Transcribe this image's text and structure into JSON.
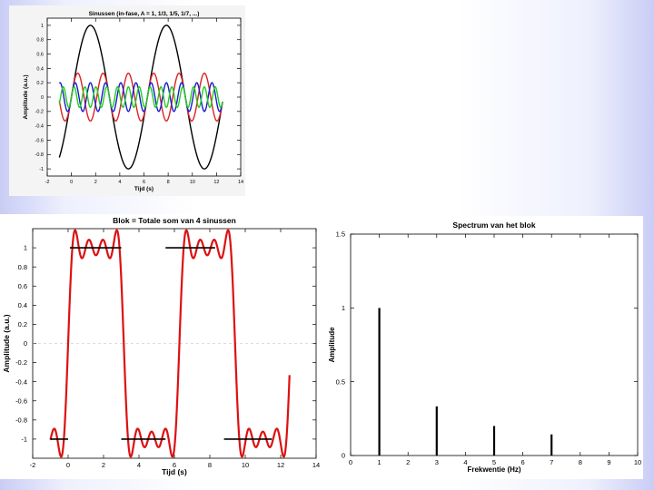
{
  "chart_data": [
    {
      "type": "line",
      "title": "Sinussen (in-fase, A = 1, 1/3, 1/5, 1/7, ...)",
      "xlabel": "Tijd (s)",
      "ylabel": "Amplitude (a.u.)",
      "xlim": [
        -2,
        14
      ],
      "ylim": [
        -1.1,
        1.1
      ],
      "xticks": [
        "-2",
        "0",
        "2",
        "4",
        "6",
        "8",
        "10",
        "12",
        "14"
      ],
      "yticks": [
        "-1",
        "-0.8",
        "-0.6",
        "-0.4",
        "-0.2",
        "0",
        "0.2",
        "0.4",
        "0.6",
        "0.8",
        "1"
      ],
      "x_range": [
        -1,
        12.5
      ],
      "period": 6.283,
      "series": [
        {
          "harmonic": 1,
          "amplitude": 1.0,
          "color": "#000000"
        },
        {
          "harmonic": 3,
          "amplitude": 0.333,
          "color": "#dd2222"
        },
        {
          "harmonic": 5,
          "amplitude": 0.2,
          "color": "#1a1acc"
        },
        {
          "harmonic": 7,
          "amplitude": 0.143,
          "color": "#22cc22"
        }
      ],
      "grid": false
    },
    {
      "type": "line",
      "title": "Blok = Totale som van  4 sinussen",
      "xlabel": "Tijd (s)",
      "ylabel": "Amplitude (a.u.)",
      "xlim": [
        -2,
        14
      ],
      "ylim": [
        -1.2,
        1.2
      ],
      "xticks": [
        "-2",
        "0",
        "2",
        "4",
        "6",
        "8",
        "10",
        "12",
        "14"
      ],
      "yticks": [
        "-1",
        "-0.8",
        "-0.6",
        "-0.4",
        "-0.2",
        "0",
        "0.2",
        "0.4",
        "0.6",
        "0.8",
        "1"
      ],
      "x_range": [
        -1,
        12.5
      ],
      "harmonics": [
        1,
        3,
        5,
        7
      ],
      "amplitudes": [
        1,
        0.333,
        0.2,
        0.143
      ],
      "scale": 1.273,
      "line_color": "#dd1111",
      "ideal_segments": [
        {
          "x0": 0.1,
          "x1": 3.0,
          "y": 1
        },
        {
          "x0": 5.5,
          "x1": 8.3,
          "y": 1
        },
        {
          "x0": -1.0,
          "x1": 0.0,
          "y": -1
        },
        {
          "x0": 3.0,
          "x1": 5.5,
          "y": -1
        },
        {
          "x0": 8.8,
          "x1": 11.5,
          "y": -1
        }
      ],
      "grid": false
    },
    {
      "type": "bar",
      "title": "Spectrum van het blok",
      "xlabel": "Frekwentie (Hz)",
      "ylabel": "Amplitude",
      "xlim": [
        0,
        10
      ],
      "ylim": [
        0,
        1.5
      ],
      "xticks": [
        "0",
        "1",
        "2",
        "3",
        "4",
        "5",
        "6",
        "7",
        "8",
        "9",
        "10"
      ],
      "yticks": [
        "0",
        "0.5",
        "1",
        "1.5"
      ],
      "x": [
        1,
        3,
        5,
        7
      ],
      "values": [
        1,
        0.333,
        0.2,
        0.143
      ],
      "grid": false
    }
  ]
}
